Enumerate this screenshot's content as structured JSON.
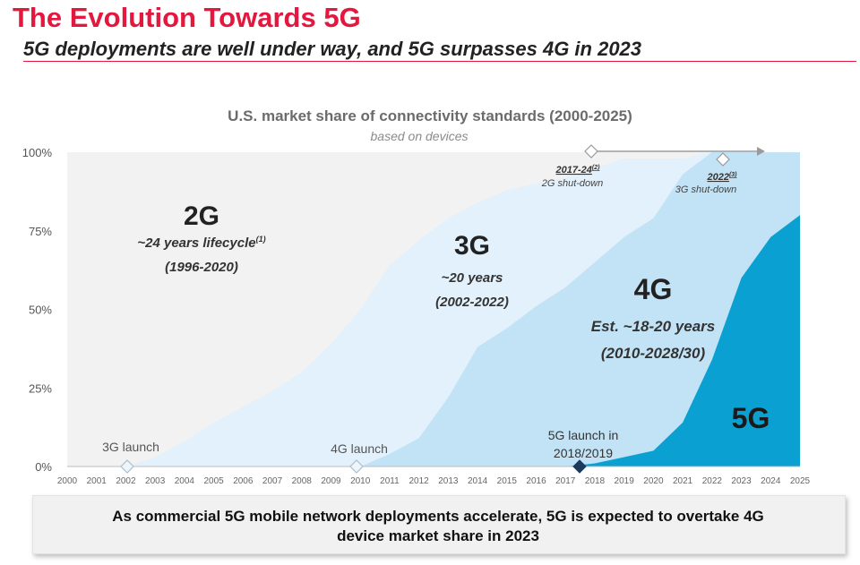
{
  "header": {
    "title": "The Evolution Towards 5G",
    "subtitle": "5G deployments are well under way, and 5G surpasses 4G in 2023"
  },
  "chart_data": {
    "type": "area",
    "title": "U.S. market share of connectivity standards (2000-2025)",
    "subtitle": "based on devices",
    "x": [
      2000,
      2001,
      2002,
      2003,
      2004,
      2005,
      2006,
      2007,
      2008,
      2009,
      2010,
      2011,
      2012,
      2013,
      2014,
      2015,
      2016,
      2017,
      2018,
      2019,
      2020,
      2021,
      2022,
      2023,
      2024,
      2025
    ],
    "ylim": [
      0,
      100
    ],
    "ytick_labels": [
      "0%",
      "25%",
      "50%",
      "75%",
      "100%"
    ],
    "series": [
      {
        "name": "2G",
        "color": "#f2f2f2",
        "cumulative_top": [
          100,
          100,
          100,
          100,
          100,
          100,
          100,
          100,
          100,
          100,
          100,
          100,
          100,
          100,
          100,
          100,
          100,
          100,
          100,
          100,
          100,
          100,
          100,
          100,
          100,
          100
        ]
      },
      {
        "name": "3G",
        "color": "#e2f1fb",
        "cumulative_top": [
          0,
          0,
          0,
          3,
          8,
          14,
          19,
          24,
          30,
          39,
          50,
          64,
          72,
          79,
          84,
          88,
          90,
          92,
          95,
          98,
          98,
          98,
          100,
          100,
          100,
          100
        ]
      },
      {
        "name": "4G",
        "color": "#c2e3f6",
        "cumulative_top": [
          0,
          0,
          0,
          0,
          0,
          0,
          0,
          0,
          0,
          0,
          0,
          4,
          9,
          22,
          38,
          44,
          51,
          57,
          65,
          73,
          79,
          93,
          100,
          100,
          100,
          100
        ]
      },
      {
        "name": "5G",
        "color": "#0aa0d1",
        "cumulative_top": [
          0,
          0,
          0,
          0,
          0,
          0,
          0,
          0,
          0,
          0,
          0,
          0,
          0,
          0,
          0,
          0,
          0,
          0,
          1,
          3,
          5,
          14,
          34,
          60,
          73,
          80
        ]
      }
    ],
    "region_labels": {
      "g2": {
        "name": "2G",
        "detail": "~24 years lifecycle",
        "sup": "(1)",
        "years": "(1996-2020)"
      },
      "g3": {
        "name": "3G",
        "detail": "~20 years",
        "years": "(2002-2022)"
      },
      "g4": {
        "name": "4G",
        "detail": "Est. ~18-20 years",
        "years": "(2010-2028/30)"
      },
      "g5": {
        "name": "5G"
      }
    },
    "milestones": [
      {
        "id": "3g",
        "year": 2002,
        "label": "3G launch"
      },
      {
        "id": "4g",
        "year": 2010,
        "label": "4G launch"
      },
      {
        "id": "5g",
        "year": 2017.5,
        "label_line1": "5G launch in",
        "label_line2": "2018/2019"
      }
    ],
    "shutdowns": [
      {
        "id": "2g",
        "date": "2017-24",
        "sup": "(2)",
        "label": "2G shut-down"
      },
      {
        "id": "3g",
        "date": "2022",
        "sup": "(3)",
        "label": "3G shut-down"
      }
    ]
  },
  "footer": {
    "line1": "As commercial 5G mobile network deployments accelerate, 5G is expected to overtake 4G",
    "line2": "device market share in 2023"
  }
}
